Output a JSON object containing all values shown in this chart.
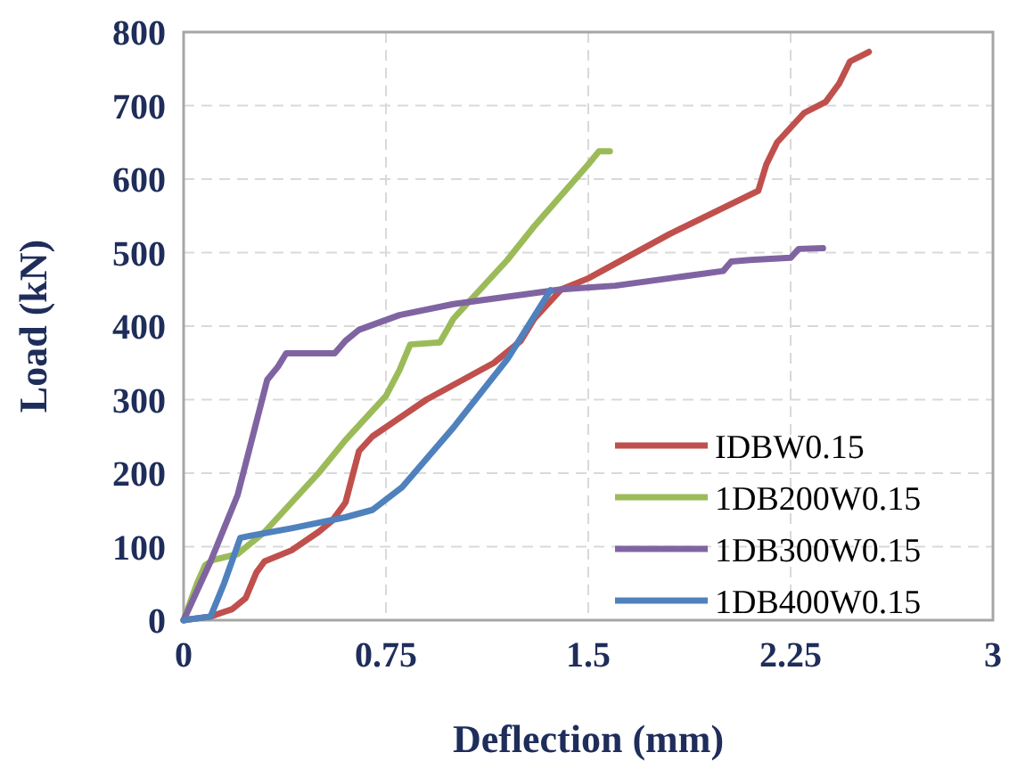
{
  "chart_data": {
    "type": "line",
    "xlabel": "Deflection (mm)",
    "ylabel": "Load (kN)",
    "xlim": [
      0,
      3
    ],
    "ylim": [
      0,
      800
    ],
    "xticks": [
      0,
      0.75,
      1.5,
      2.25,
      3
    ],
    "yticks": [
      0,
      100,
      200,
      300,
      400,
      500,
      600,
      700,
      800
    ],
    "grid": true,
    "legend": "right",
    "marker": "none",
    "line_style": "solid",
    "series": [
      {
        "name": "IDBW0.15",
        "color": "#c0504d",
        "x": [
          0,
          0.1,
          0.18,
          0.23,
          0.27,
          0.3,
          0.4,
          0.5,
          0.55,
          0.6,
          0.65,
          0.7,
          0.8,
          0.9,
          1.0,
          1.15,
          1.25,
          1.3,
          1.35,
          1.4,
          1.5,
          1.8,
          2.13,
          2.16,
          2.2,
          2.3,
          2.38,
          2.43,
          2.47,
          2.54
        ],
        "values": [
          0,
          5,
          15,
          30,
          65,
          80,
          95,
          120,
          135,
          160,
          230,
          250,
          275,
          300,
          320,
          350,
          380,
          410,
          430,
          450,
          465,
          525,
          584,
          620,
          650,
          690,
          705,
          730,
          760,
          773
        ]
      },
      {
        "name": "1DB200W0.15",
        "color": "#9bbb59",
        "x": [
          0,
          0.05,
          0.08,
          0.11,
          0.2,
          0.3,
          0.5,
          0.6,
          0.7,
          0.75,
          0.8,
          0.84,
          0.95,
          1.0,
          1.2,
          1.3,
          1.5,
          1.54,
          1.58
        ],
        "values": [
          0,
          50,
          75,
          82,
          90,
          120,
          200,
          245,
          285,
          305,
          340,
          375,
          378,
          410,
          490,
          536,
          620,
          638,
          638
        ]
      },
      {
        "name": "1DB300W0.15",
        "color": "#8064a2",
        "x": [
          0,
          0.05,
          0.1,
          0.2,
          0.31,
          0.35,
          0.38,
          0.45,
          0.56,
          0.6,
          0.65,
          0.8,
          1.0,
          1.2,
          1.4,
          1.6,
          1.8,
          2.0,
          2.03,
          2.1,
          2.25,
          2.28,
          2.37
        ],
        "values": [
          0,
          40,
          80,
          170,
          327,
          345,
          363,
          363,
          363,
          380,
          395,
          415,
          430,
          440,
          450,
          455,
          465,
          475,
          488,
          490,
          493,
          505,
          506
        ]
      },
      {
        "name": "1DB400W0.15",
        "color": "#4f81bd",
        "x": [
          0,
          0.1,
          0.15,
          0.21,
          0.25,
          0.4,
          0.6,
          0.7,
          0.81,
          1.0,
          1.2,
          1.36
        ],
        "values": [
          0,
          5,
          50,
          112,
          115,
          125,
          140,
          150,
          181,
          262,
          355,
          449
        ]
      }
    ]
  }
}
